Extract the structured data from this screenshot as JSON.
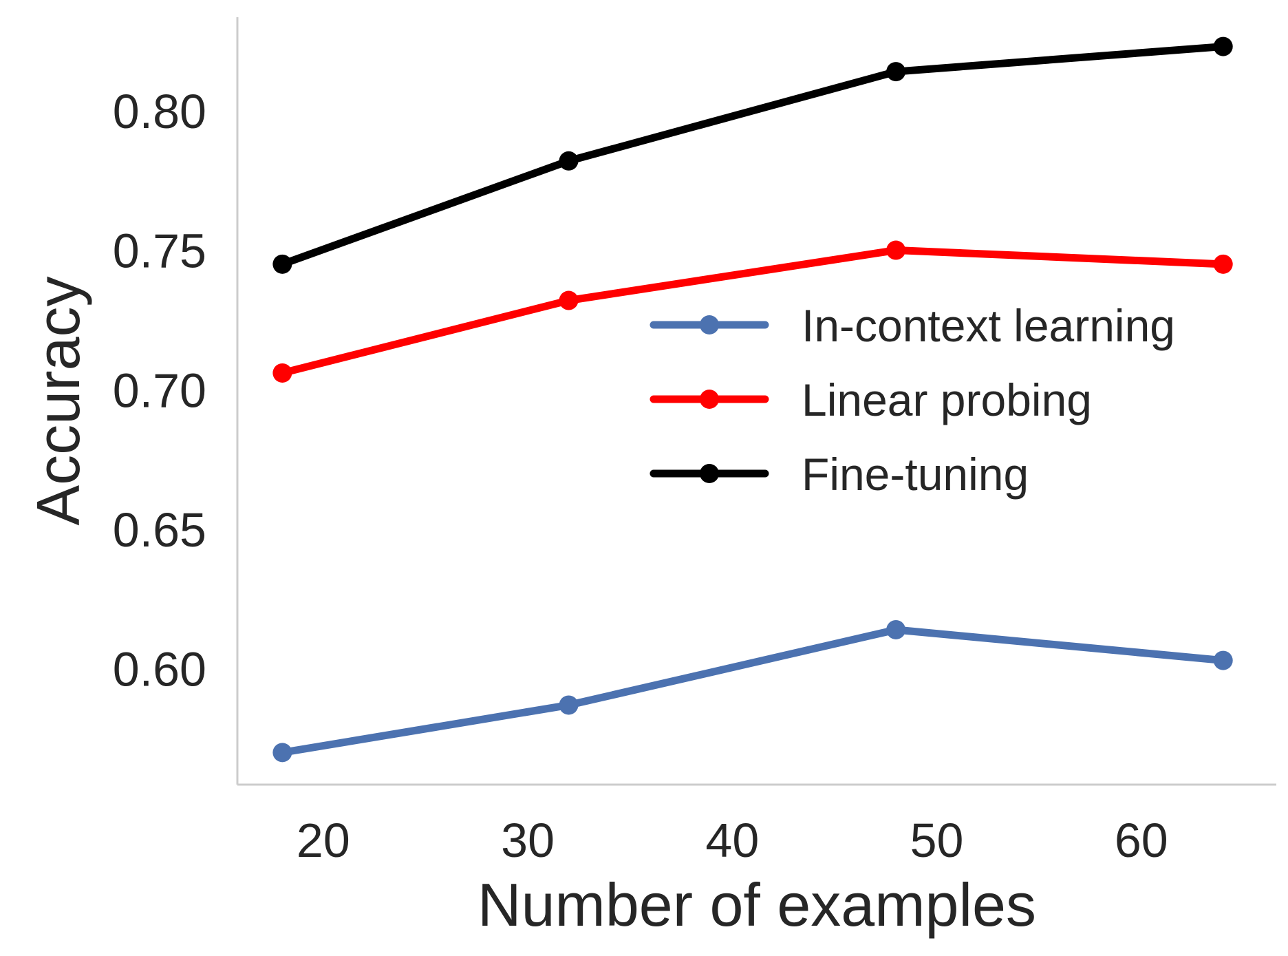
{
  "chart_data": {
    "type": "line",
    "title": "",
    "xlabel": "Number of examples",
    "ylabel": "Accuracy",
    "x": [
      18,
      32,
      48,
      64
    ],
    "xlim": [
      15.8,
      66.6
    ],
    "ylim": [
      0.5585,
      0.8335
    ],
    "xticks": [
      20,
      30,
      40,
      50,
      60
    ],
    "xtick_labels": [
      "20",
      "30",
      "40",
      "50",
      "60"
    ],
    "yticks": [
      0.6,
      0.65,
      0.7,
      0.75,
      0.8
    ],
    "ytick_labels": [
      "0.60",
      "0.65",
      "0.70",
      "0.75",
      "0.80"
    ],
    "grid": false,
    "legend_position": "center-right",
    "series": [
      {
        "name": "In-context learning",
        "color": "#4C72B0",
        "values": [
          0.57,
          0.587,
          0.614,
          0.603
        ]
      },
      {
        "name": "Linear probing",
        "color": "#FF0000",
        "values": [
          0.706,
          0.732,
          0.75,
          0.745
        ]
      },
      {
        "name": "Fine-tuning",
        "color": "#000000",
        "values": [
          0.745,
          0.782,
          0.814,
          0.823
        ]
      }
    ]
  }
}
